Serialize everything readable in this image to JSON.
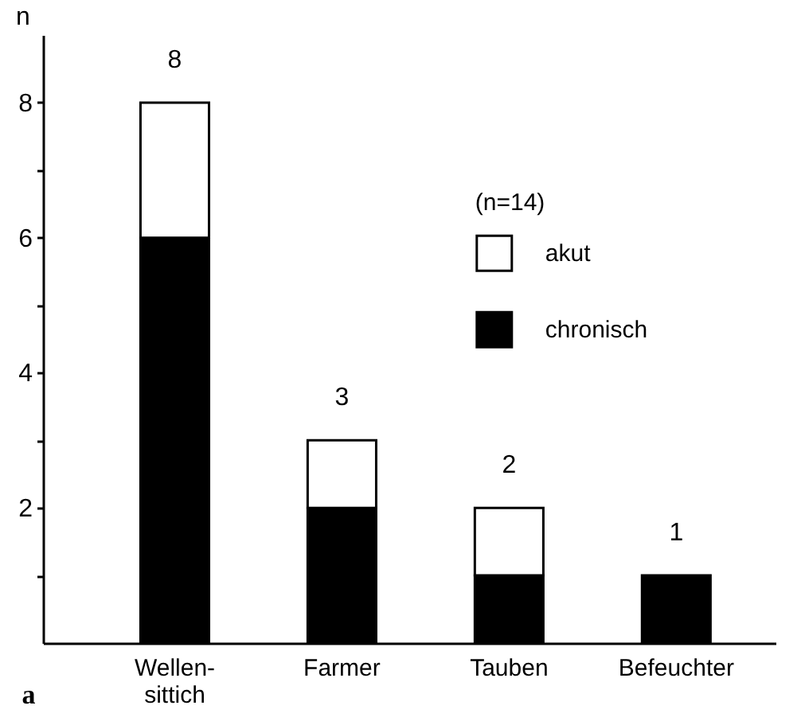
{
  "chart_data": {
    "type": "bar",
    "stacked": true,
    "ylabel": "n",
    "categories": [
      "Wellen-\nsittich",
      "Farmer",
      "Tauben",
      "Befeuchter"
    ],
    "series": [
      {
        "name": "chronisch",
        "color": "#000000",
        "values": [
          6,
          2,
          1,
          1
        ]
      },
      {
        "name": "akut",
        "color": "#ffffff",
        "values": [
          2,
          1,
          1,
          null
        ]
      }
    ],
    "ylim": [
      0,
      9
    ],
    "yticks": [
      {
        "value": 1,
        "label": null
      },
      2,
      {
        "value": 3,
        "label": null
      },
      4,
      {
        "value": 5,
        "label": null
      },
      6,
      {
        "value": 7,
        "label": null
      },
      8
    ],
    "totals": [
      "8",
      "3",
      "2",
      "1"
    ],
    "legend": "top right",
    "legend_title": "(n=14)",
    "annotations": [
      "a"
    ]
  }
}
